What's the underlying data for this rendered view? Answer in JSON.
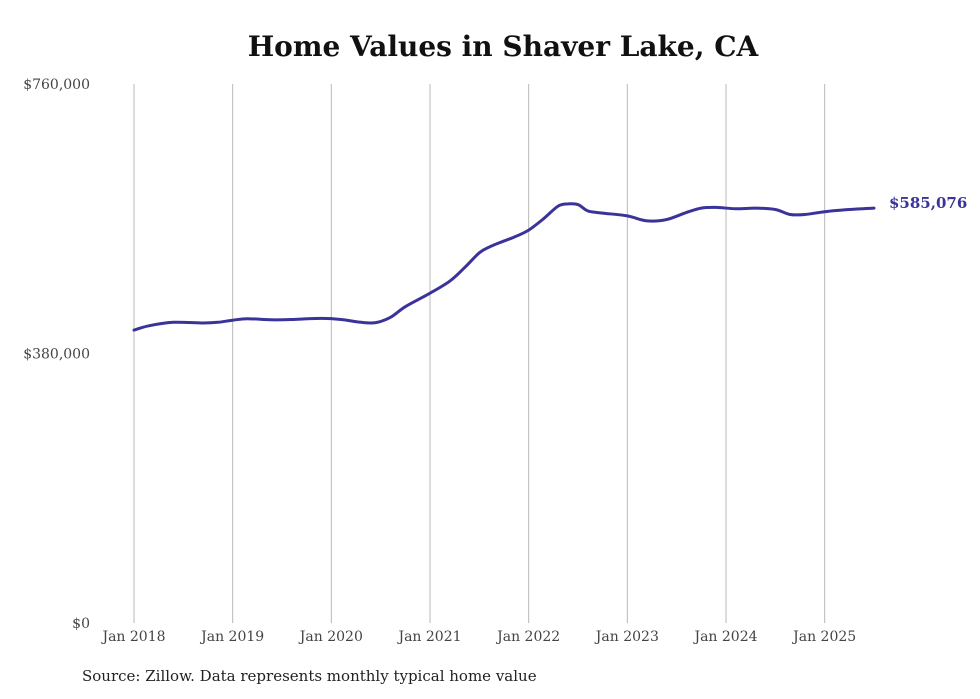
{
  "chart_data": {
    "type": "line",
    "title": "Home Values in Shaver Lake, CA",
    "xlabel": "",
    "ylabel": "",
    "source": "Source: Zillow. Data represents monthly typical home value",
    "ylim": [
      0,
      760000
    ],
    "xlim": [
      2018.0,
      2025.5
    ],
    "y_ticks": [
      {
        "value": 0,
        "label": "$0"
      },
      {
        "value": 380000,
        "label": "$380,000"
      },
      {
        "value": 760000,
        "label": "$760,000"
      }
    ],
    "x_ticks": [
      {
        "value": 2018,
        "label": "Jan 2018"
      },
      {
        "value": 2019,
        "label": "Jan 2019"
      },
      {
        "value": 2020,
        "label": "Jan 2020"
      },
      {
        "value": 2021,
        "label": "Jan 2021"
      },
      {
        "value": 2022,
        "label": "Jan 2022"
      },
      {
        "value": 2023,
        "label": "Jan 2023"
      },
      {
        "value": 2024,
        "label": "Jan 2024"
      },
      {
        "value": 2025,
        "label": "Jan 2025"
      }
    ],
    "grid": {
      "vertical": true,
      "horizontal": false
    },
    "series": [
      {
        "name": "Typical home value",
        "color": "#3a3399",
        "x": [
          2018.0,
          2018.15,
          2018.4,
          2018.7,
          2018.85,
          2019.0,
          2019.15,
          2019.4,
          2019.6,
          2019.9,
          2020.1,
          2020.3,
          2020.45,
          2020.6,
          2020.75,
          2021.0,
          2021.2,
          2021.35,
          2021.5,
          2021.6,
          2021.7,
          2021.85,
          2022.0,
          2022.15,
          2022.3,
          2022.4,
          2022.5,
          2022.6,
          2022.75,
          2023.0,
          2023.2,
          2023.4,
          2023.6,
          2023.75,
          2023.9,
          2024.1,
          2024.3,
          2024.5,
          2024.65,
          2024.8,
          2025.0,
          2025.25,
          2025.5
        ],
        "values": [
          413000,
          419000,
          424000,
          423000,
          424000,
          427000,
          429000,
          427500,
          428000,
          429500,
          428000,
          424000,
          423500,
          431000,
          446000,
          465000,
          482000,
          501000,
          522000,
          530000,
          536000,
          544000,
          554000,
          570000,
          588000,
          591000,
          590000,
          581000,
          578000,
          574000,
          567000,
          569000,
          579000,
          585000,
          586000,
          584000,
          585000,
          583000,
          576000,
          576000,
          580000,
          583000,
          585076
        ]
      }
    ],
    "end_label": "$585,076"
  }
}
